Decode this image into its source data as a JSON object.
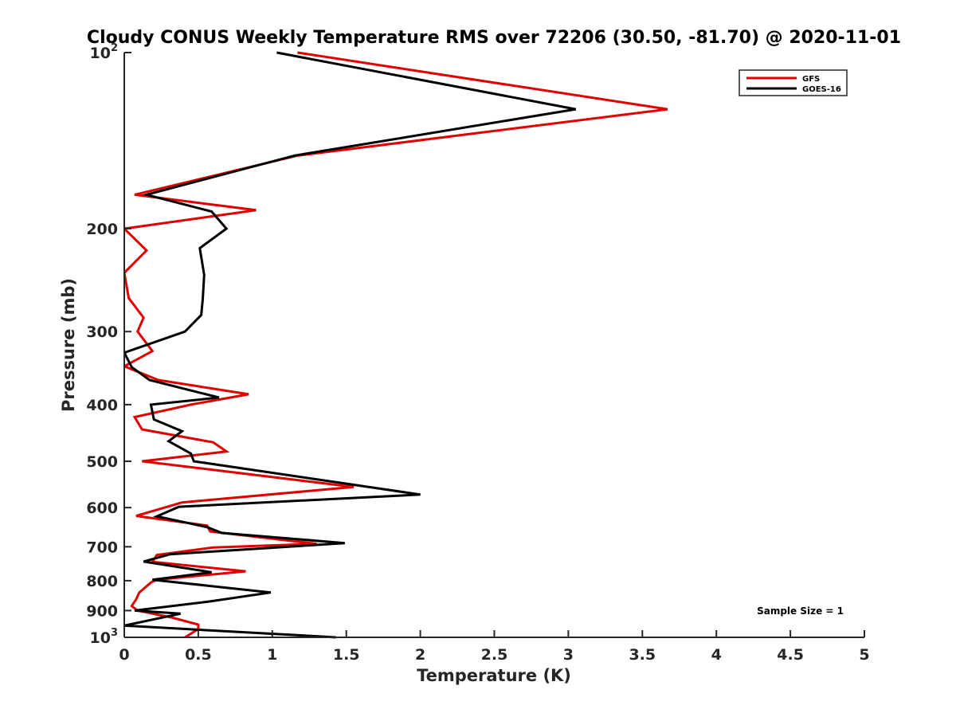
{
  "chart_data": {
    "type": "line",
    "title": "Cloudy CONUS Weekly Temperature RMS over 72206 (30.50, -81.70) @ 2020-11-01",
    "xlabel": "Temperature (K)",
    "ylabel": "Pressure (mb)",
    "xlim": [
      0,
      5
    ],
    "ylim": [
      100,
      1000
    ],
    "yscale": "log",
    "y_reversed": true,
    "xticks": [
      0,
      0.5,
      1,
      1.5,
      2,
      2.5,
      3,
      3.5,
      4,
      4.5,
      5
    ],
    "xtick_labels": [
      "0",
      "0.5",
      "1",
      "1.5",
      "2",
      "2.5",
      "3",
      "3.5",
      "4",
      "4.5",
      "5"
    ],
    "yticks": [
      200,
      300,
      400,
      500,
      600,
      700,
      800,
      900
    ],
    "ytick_labels": [
      "200",
      "300",
      "400",
      "500",
      "600",
      "700",
      "800",
      "900"
    ],
    "ytick_pow": [
      {
        "value": 100,
        "base": "10",
        "exp": "2"
      },
      {
        "value": 1000,
        "base": "10",
        "exp": "3"
      }
    ],
    "grid": false,
    "legend_position": "top-right",
    "annotation": "Sample Size = 1",
    "series": [
      {
        "name": "GFS",
        "color": "#e00000",
        "points": [
          [
            1.17,
            100
          ],
          [
            3.67,
            125
          ],
          [
            1.17,
            150
          ],
          [
            0.07,
            175
          ],
          [
            0.89,
            186
          ],
          [
            0.0,
            200
          ],
          [
            0.15,
            218
          ],
          [
            0.0,
            238
          ],
          [
            0.03,
            263
          ],
          [
            0.13,
            284
          ],
          [
            0.09,
            300
          ],
          [
            0.19,
            324
          ],
          [
            0.0,
            344
          ],
          [
            0.23,
            363
          ],
          [
            0.84,
            384
          ],
          [
            0.45,
            400
          ],
          [
            0.07,
            420
          ],
          [
            0.12,
            441
          ],
          [
            0.6,
            464
          ],
          [
            0.69,
            481
          ],
          [
            0.12,
            500
          ],
          [
            1.55,
            553
          ],
          [
            0.39,
            588
          ],
          [
            0.08,
            620
          ],
          [
            0.56,
            644
          ],
          [
            0.58,
            659
          ],
          [
            1.3,
            692
          ],
          [
            0.6,
            702
          ],
          [
            0.22,
            723
          ],
          [
            0.19,
            743
          ],
          [
            0.82,
            771
          ],
          [
            0.22,
            797
          ],
          [
            0.18,
            806
          ],
          [
            0.1,
            839
          ],
          [
            0.08,
            861
          ],
          [
            0.05,
            884
          ],
          [
            0.09,
            900
          ],
          [
            0.32,
            925
          ],
          [
            0.5,
            951
          ],
          [
            0.5,
            968
          ],
          [
            0.41,
            1000
          ]
        ]
      },
      {
        "name": "GOES-16",
        "color": "#000000",
        "points": [
          [
            1.03,
            100
          ],
          [
            3.05,
            125
          ],
          [
            1.15,
            150
          ],
          [
            0.15,
            175
          ],
          [
            0.59,
            187
          ],
          [
            0.69,
            200
          ],
          [
            0.51,
            216
          ],
          [
            0.54,
            240
          ],
          [
            0.53,
            264
          ],
          [
            0.52,
            281
          ],
          [
            0.41,
            300
          ],
          [
            0.0,
            326
          ],
          [
            0.05,
            345
          ],
          [
            0.17,
            363
          ],
          [
            0.64,
            389
          ],
          [
            0.18,
            400
          ],
          [
            0.2,
            424
          ],
          [
            0.39,
            444
          ],
          [
            0.3,
            462
          ],
          [
            0.45,
            485
          ],
          [
            0.47,
            500
          ],
          [
            2.0,
            570
          ],
          [
            0.37,
            598
          ],
          [
            0.22,
            621
          ],
          [
            0.56,
            648
          ],
          [
            0.66,
            663
          ],
          [
            1.49,
            690
          ],
          [
            0.31,
            721
          ],
          [
            0.13,
            742
          ],
          [
            0.59,
            774
          ],
          [
            0.19,
            797
          ],
          [
            0.99,
            838
          ],
          [
            0.58,
            868
          ],
          [
            0.07,
            900
          ],
          [
            0.38,
            911
          ],
          [
            0.0,
            955
          ],
          [
            1.43,
            1000
          ]
        ]
      }
    ]
  }
}
